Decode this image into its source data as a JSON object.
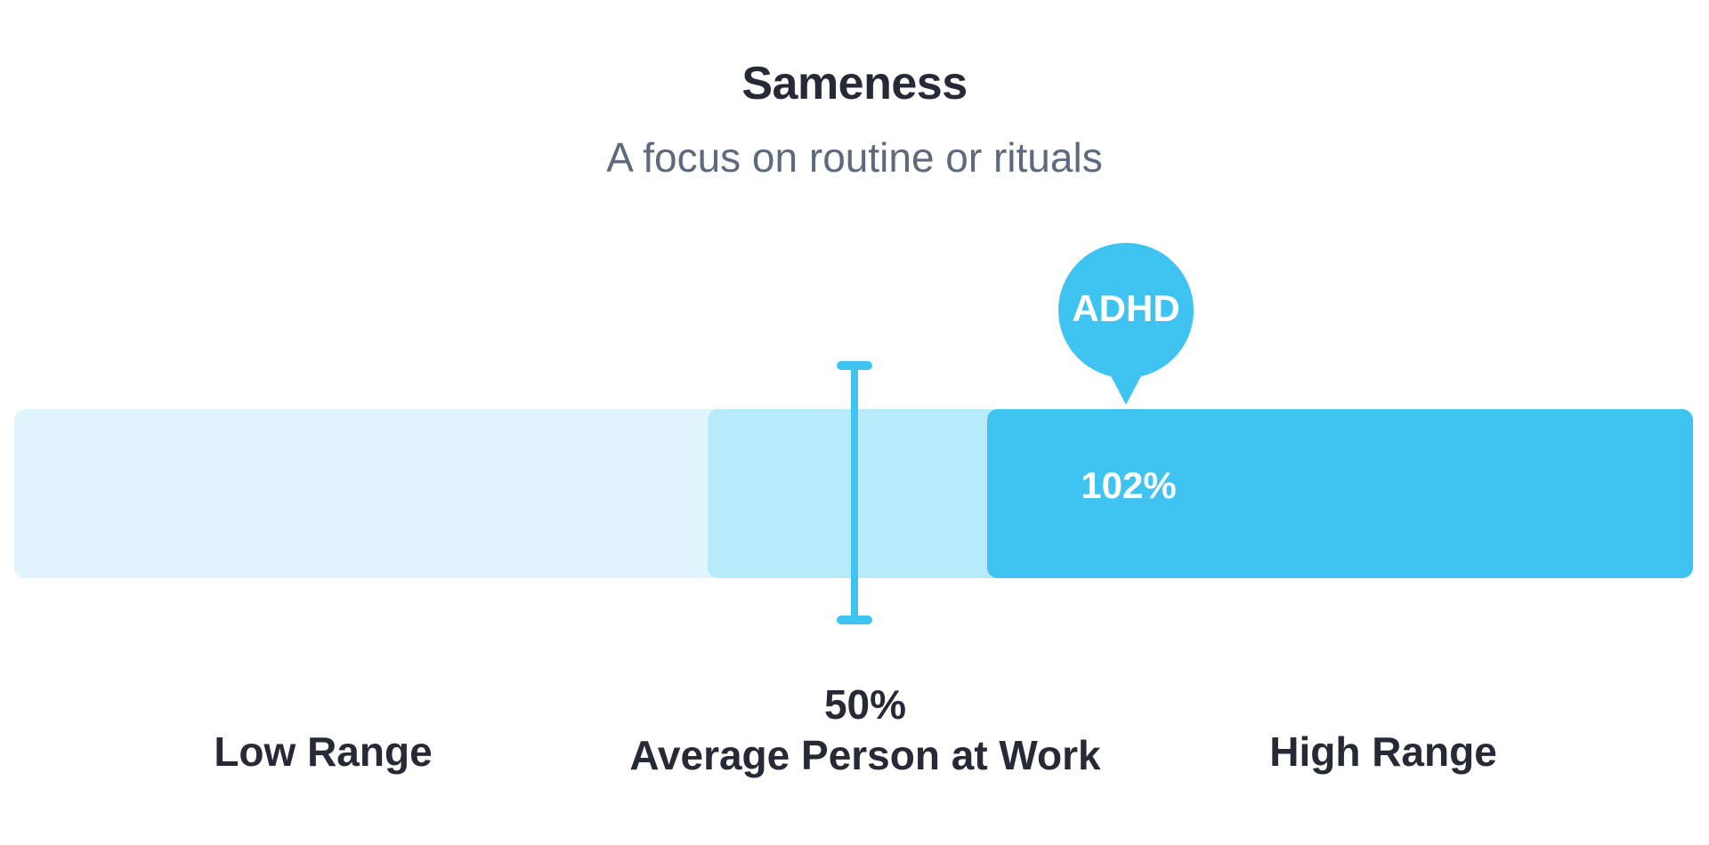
{
  "chart_data": {
    "type": "bar",
    "title": "Sameness",
    "subtitle": "A focus on routine or rituals",
    "categories": [
      "Low Range",
      "Average Person at Work",
      "High Range"
    ],
    "average": {
      "value": 50,
      "value_label": "50%",
      "label": "Average Person at Work"
    },
    "marker": {
      "label": "ADHD",
      "value": 102,
      "value_label": "102%"
    },
    "ranges": [
      {
        "name": "Low Range",
        "color": "#e1f5fc"
      },
      {
        "name": "Average",
        "color": "#b7ebfa"
      },
      {
        "name": "High Range",
        "color": "#3fc4f1"
      }
    ],
    "accent_color": "#3fc4f1"
  }
}
